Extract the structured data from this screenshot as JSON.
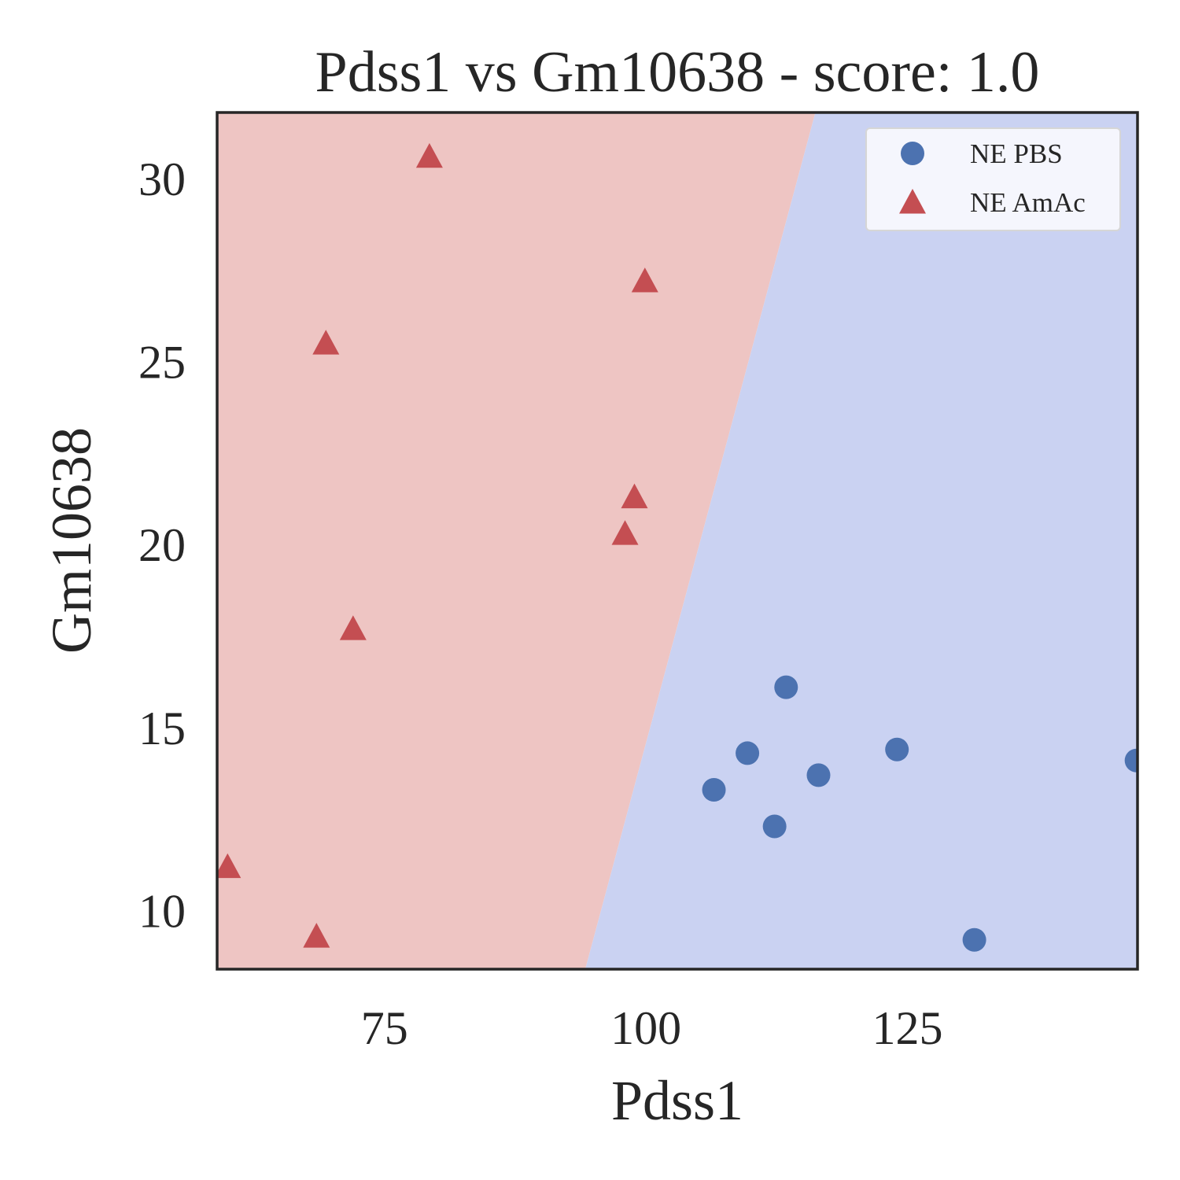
{
  "chart_data": {
    "type": "scatter",
    "title": "Pdss1 vs Gm10638 - score: 1.0",
    "xlabel": "Pdss1",
    "ylabel": "Gm10638",
    "xlim": [
      59,
      147
    ],
    "ylim": [
      8.4,
      31.8
    ],
    "xticks": [
      75,
      100,
      125
    ],
    "yticks": [
      10,
      15,
      20,
      25,
      30
    ],
    "grid": false,
    "legend_position": "top-right",
    "decision_boundary": {
      "points": [
        [
          94.2,
          8.4
        ],
        [
          116.2,
          31.8
        ]
      ],
      "left_region_class": "NE AmAc",
      "right_region_class": "NE PBS"
    },
    "colors": {
      "NE PBS": "#4c72b0",
      "NE AmAc": "#c44e52",
      "region_NE PBS": "#cad2f2",
      "region_NE AmAc": "#eec5c3"
    },
    "series": [
      {
        "name": "NE PBS",
        "marker": "circle",
        "points": [
          [
            106.5,
            13.3
          ],
          [
            109.7,
            14.3
          ],
          [
            112.3,
            12.3
          ],
          [
            113.4,
            16.1
          ],
          [
            116.5,
            13.7
          ],
          [
            124.0,
            14.4
          ],
          [
            131.4,
            9.2
          ],
          [
            146.9,
            14.1
          ]
        ]
      },
      {
        "name": "NE AmAc",
        "marker": "triangle",
        "points": [
          [
            60.0,
            11.2
          ],
          [
            68.5,
            9.3
          ],
          [
            69.4,
            25.5
          ],
          [
            72.0,
            17.7
          ],
          [
            79.3,
            30.6
          ],
          [
            98.0,
            20.3
          ],
          [
            98.9,
            21.3
          ],
          [
            99.9,
            27.2
          ]
        ]
      }
    ]
  }
}
